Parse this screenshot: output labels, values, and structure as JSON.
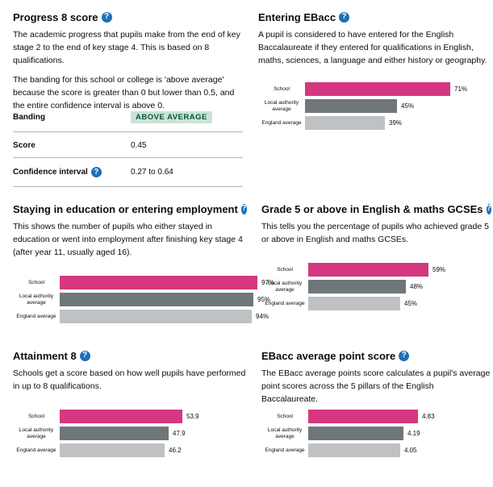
{
  "colors": {
    "school": "#d53880",
    "local_authority": "#6f777b",
    "england": "#bfc1c3",
    "help_icon": "#1d70b8"
  },
  "progress8": {
    "title": "Progress 8 score",
    "intro": "The academic progress that pupils make from the end of key stage 2 to the end of key stage 4. This is based on 8 qualifications.",
    "banding_text": "The banding for this school or college is 'above average' because the score is greater than 0 but lower than 0.5, and the entire confidence interval is above 0.",
    "rows": {
      "banding_label": "Banding",
      "banding_value": "ABOVE AVERAGE",
      "score_label": "Score",
      "score_value": "0.45",
      "ci_label": "Confidence interval",
      "ci_value": "0.27 to 0.64"
    }
  },
  "ebacc_entry": {
    "title": "Entering EBacc",
    "intro": "A pupil is considered to have entered for the English Baccalaureate if they entered for qualifications in English, maths, sciences, a language and either history or geography."
  },
  "staying": {
    "title": "Staying in education or entering employment",
    "intro": "This shows the number of pupils who either stayed in education or went into employment after finishing key stage 4 (after year 11, usually aged 16)."
  },
  "grade5": {
    "title": "Grade 5 or above in English & maths GCSEs",
    "intro": "This tells you the percentage of pupils who achieved grade 5 or above in English and maths GCSEs."
  },
  "attainment8": {
    "title": "Attainment 8",
    "intro": "Schools get a score based on how well pupils have performed in up to 8 qualifications."
  },
  "ebacc_aps": {
    "title": "EBacc average point score",
    "intro": "The EBacc average points score calculates a pupil's average point scores across the 5 pillars of the English Baccalaureate."
  },
  "chart_data": [
    {
      "type": "bar",
      "id": "ebacc_entry",
      "categories": [
        "School",
        "Local authority average",
        "England average"
      ],
      "values": [
        71,
        45,
        39
      ],
      "value_labels": [
        "71%",
        "45%",
        "39%"
      ],
      "xlim": [
        0,
        100
      ]
    },
    {
      "type": "bar",
      "id": "staying",
      "categories": [
        "School",
        "Local authority average",
        "England average"
      ],
      "values": [
        97,
        95,
        94
      ],
      "value_labels": [
        "97%",
        "95%",
        "94%"
      ],
      "xlim": [
        0,
        100
      ]
    },
    {
      "type": "bar",
      "id": "grade5",
      "categories": [
        "School",
        "Local authority average",
        "England average"
      ],
      "values": [
        59,
        48,
        45
      ],
      "value_labels": [
        "59%",
        "48%",
        "45%"
      ],
      "xlim": [
        0,
        100
      ]
    },
    {
      "type": "bar",
      "id": "attainment8",
      "categories": [
        "School",
        "Local authority average",
        "England average"
      ],
      "values": [
        53.9,
        47.9,
        46.2
      ],
      "value_labels": [
        "53.9",
        "47.9",
        "46.2"
      ],
      "xlim": [
        0,
        90
      ]
    },
    {
      "type": "bar",
      "id": "ebacc_aps",
      "categories": [
        "School",
        "Local authority average",
        "England average"
      ],
      "values": [
        4.83,
        4.19,
        4.05
      ],
      "value_labels": [
        "4.83",
        "4.19",
        "4.05"
      ],
      "xlim": [
        0,
        9
      ]
    }
  ]
}
